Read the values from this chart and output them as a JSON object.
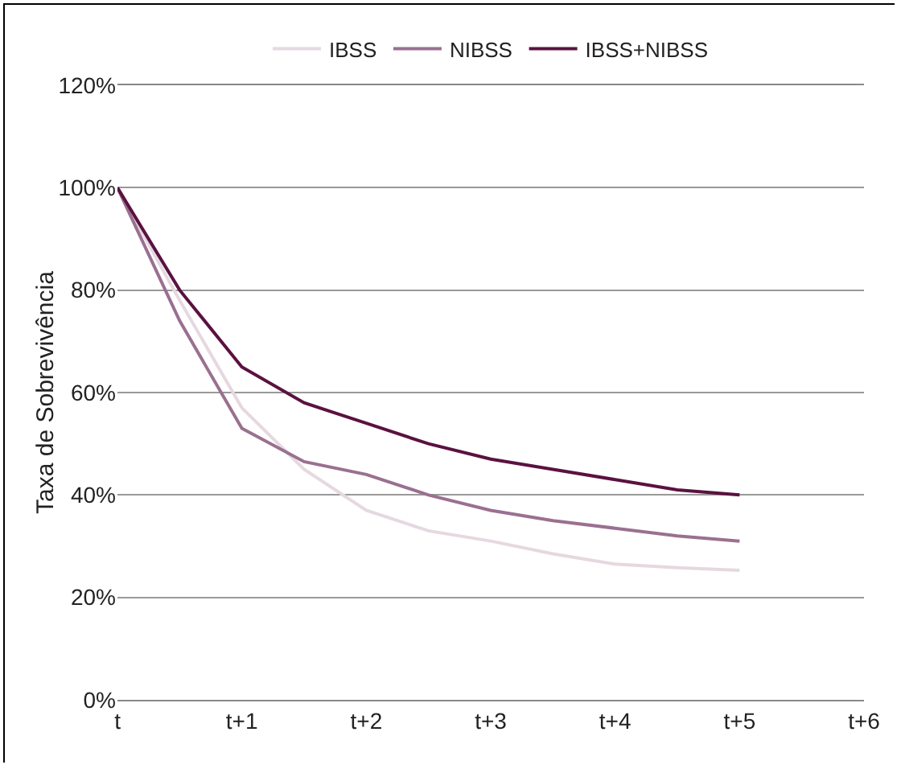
{
  "chart_data": {
    "type": "line",
    "ylabel": "Taxa de Sobrevivência",
    "categories": [
      "t",
      null,
      "t+1",
      null,
      "t+2",
      null,
      "t+3",
      null,
      "t+4",
      null,
      "t+5",
      null,
      "t+6"
    ],
    "series": [
      {
        "name": "IBSS",
        "color": "#e6d8e0",
        "values": [
          100,
          78,
          57,
          45,
          37,
          33,
          31,
          28.5,
          26.5,
          25.8,
          25.3,
          null,
          null
        ]
      },
      {
        "name": "NIBSS",
        "color": "#9a7090",
        "values": [
          100,
          74,
          53,
          46.5,
          44,
          40,
          37,
          35,
          33.5,
          32,
          31,
          null,
          null
        ]
      },
      {
        "name": "IBSS+NIBSS",
        "color": "#5a1240",
        "values": [
          100,
          80,
          65,
          58,
          54,
          50,
          47,
          45,
          43,
          41,
          40,
          null,
          null
        ]
      }
    ],
    "ylim": [
      0,
      120
    ],
    "yticks": [
      {
        "value": 0,
        "label": "0%"
      },
      {
        "value": 20,
        "label": "20%"
      },
      {
        "value": 40,
        "label": "40%"
      },
      {
        "value": 60,
        "label": "60%"
      },
      {
        "value": 80,
        "label": "80%"
      },
      {
        "value": 100,
        "label": "100%"
      },
      {
        "value": 120,
        "label": "120%"
      }
    ],
    "grid": "y",
    "legend": "top",
    "marker": "none",
    "line_style": "solid"
  }
}
